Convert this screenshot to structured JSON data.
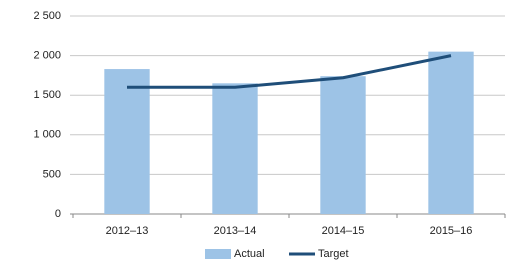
{
  "chart_data": {
    "type": "bar",
    "categories": [
      "2012–13",
      "2013–14",
      "2014–15",
      "2015–16"
    ],
    "series": [
      {
        "name": "Actual",
        "type": "bar",
        "color": "#9dc3e6",
        "values": [
          1830,
          1650,
          1740,
          2050
        ]
      },
      {
        "name": "Target",
        "type": "line",
        "color": "#1f4e79",
        "values": [
          1600,
          1600,
          1720,
          2000
        ]
      }
    ],
    "ylim": [
      0,
      2500
    ],
    "yticks": [
      0,
      500,
      {
        "value": 1000,
        "label": "1 000"
      },
      {
        "value": 1500,
        "label": "1 500"
      },
      {
        "value": 2000,
        "label": "2 000"
      },
      {
        "value": 2500,
        "label": "2 500"
      }
    ],
    "grid": true,
    "legend": "bottom"
  }
}
